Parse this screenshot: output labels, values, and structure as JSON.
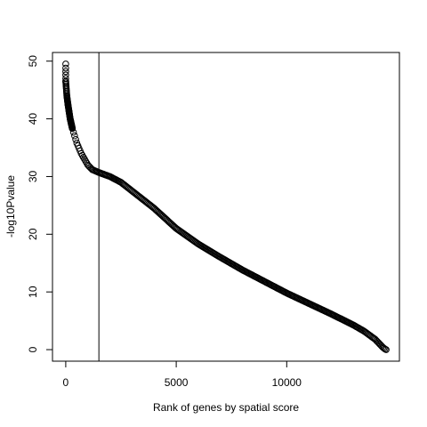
{
  "chart_data": {
    "type": "scatter",
    "title": "",
    "xlabel": "Rank of genes by spatial score",
    "ylabel": "-log10Pvalue",
    "xlim": [
      -600,
      15100
    ],
    "ylim": [
      -2,
      51.5
    ],
    "x_ticks": [
      0,
      5000,
      10000
    ],
    "x_tick_labels": [
      "0",
      "5000",
      "10000"
    ],
    "y_ticks": [
      0,
      10,
      20,
      30,
      40,
      50
    ],
    "y_tick_labels": [
      "0",
      "10",
      "20",
      "30",
      "40",
      "50"
    ],
    "grid": false,
    "legend": "none",
    "marker": "open-circle",
    "vline_x": 1500,
    "n_points": 14500,
    "curve_x": [
      0,
      50,
      100,
      200,
      300,
      500,
      700,
      1000,
      1200,
      1500,
      2000,
      2500,
      3000,
      4000,
      5000,
      6000,
      7000,
      8000,
      9000,
      10000,
      11000,
      12000,
      13000,
      13500,
      14000,
      14200,
      14350,
      14450,
      14500
    ],
    "curve_y": [
      46.5,
      44.0,
      42.5,
      40.0,
      38.3,
      35.8,
      34.0,
      32.0,
      31.2,
      30.7,
      30.0,
      29.0,
      27.5,
      24.5,
      21.0,
      18.3,
      16.0,
      13.8,
      11.8,
      9.8,
      8.0,
      6.2,
      4.3,
      3.2,
      1.8,
      1.0,
      0.4,
      0.1,
      0.0
    ],
    "outliers": [
      [
        0,
        49.5
      ],
      [
        0,
        48.8
      ],
      [
        0,
        48.2
      ],
      [
        0,
        47.6
      ],
      [
        0,
        47.0
      ]
    ],
    "colors": {
      "points": "#000000",
      "axes": "#000000",
      "background": "#ffffff"
    }
  }
}
